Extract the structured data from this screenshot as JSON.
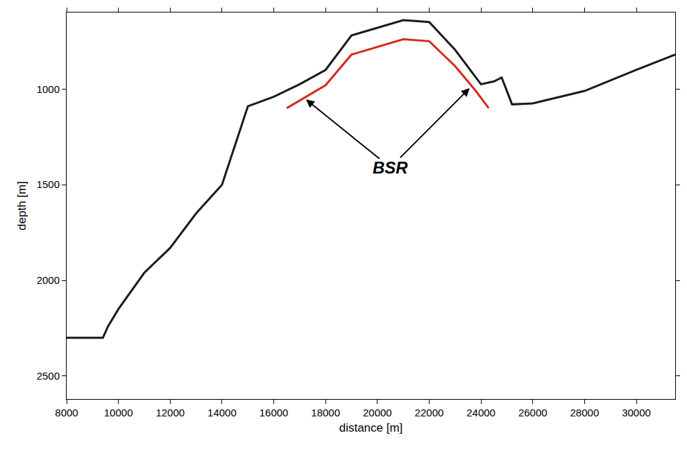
{
  "chart_data": {
    "type": "line",
    "xlabel": "distance [m]",
    "ylabel": "depth [m]",
    "xlim": [
      8000,
      31500
    ],
    "ylim": [
      2620,
      600
    ],
    "xticks": [
      8000,
      10000,
      12000,
      14000,
      16000,
      18000,
      20000,
      22000,
      24000,
      26000,
      28000,
      30000
    ],
    "yticks": [
      1000,
      1500,
      2000,
      2500
    ],
    "grid": false,
    "series": [
      {
        "color": "#1a1a1a",
        "x": [
          8000,
          9400,
          9600,
          10000,
          11000,
          12000,
          13000,
          14000,
          15000,
          16000,
          17000,
          18000,
          19000,
          20000,
          21000,
          22000,
          23000,
          24000,
          24500,
          24800,
          25200,
          26000,
          28000,
          30000,
          31500
        ],
        "values": [
          2300,
          2300,
          2240,
          2150,
          1960,
          1830,
          1650,
          1500,
          1090,
          1040,
          975,
          900,
          720,
          680,
          640,
          650,
          795,
          975,
          960,
          940,
          1080,
          1075,
          1010,
          900,
          820
        ]
      },
      {
        "color": "#d42a1e",
        "x": [
          16500,
          17000,
          18000,
          19000,
          20000,
          21000,
          22000,
          23000,
          23800,
          24300
        ],
        "values": [
          1100,
          1060,
          980,
          820,
          780,
          740,
          750,
          880,
          1010,
          1100
        ]
      }
    ],
    "annotations": [
      {
        "text": "BSR",
        "x": 20500,
        "y": 1410,
        "arrows_to": [
          [
            17200,
            1050
          ],
          [
            23600,
            990
          ]
        ]
      }
    ]
  }
}
